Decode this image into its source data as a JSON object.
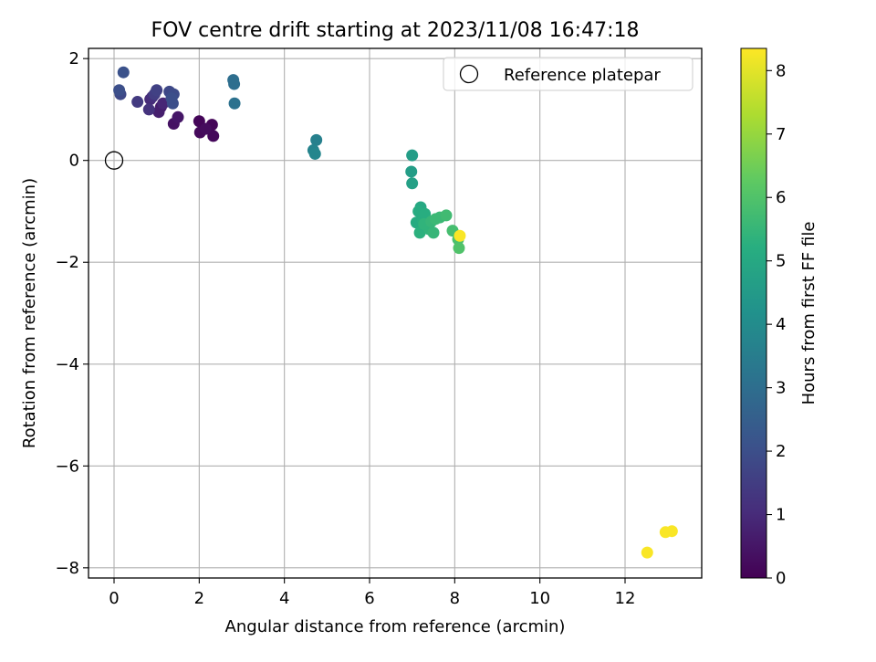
{
  "chart_data": {
    "type": "scatter",
    "title": "FOV centre drift starting at 2023/11/08 16:47:18",
    "xlabel": "Angular distance from reference (arcmin)",
    "ylabel": "Rotation from reference (arcmin)",
    "xlim": [
      -0.6,
      13.8
    ],
    "ylim": [
      -8.2,
      2.2
    ],
    "xticks": [
      0,
      2,
      4,
      6,
      8,
      10,
      12
    ],
    "yticks": [
      -8,
      -6,
      -4,
      -2,
      0,
      2
    ],
    "xtick_labels": [
      "0",
      "2",
      "4",
      "6",
      "8",
      "10",
      "12"
    ],
    "ytick_labels": [
      "−8",
      "−6",
      "−4",
      "−2",
      "0",
      "2"
    ],
    "grid": true,
    "legend": {
      "placement": "top-right",
      "entries": [
        "Reference platepar"
      ]
    },
    "reference_point": {
      "name": "Reference platepar",
      "x": 0,
      "y": 0
    },
    "colormap": "viridis",
    "colorbar": {
      "label": "Hours from first FF file",
      "min": 0,
      "max": 8.35,
      "ticks": [
        0,
        1,
        2,
        3,
        4,
        5,
        6,
        7,
        8
      ],
      "tick_labels": [
        "0",
        "1",
        "2",
        "3",
        "4",
        "5",
        "6",
        "7",
        "8"
      ]
    },
    "points": [
      {
        "x": 2.0,
        "y": 0.77,
        "c": 0.1
      },
      {
        "x": 2.3,
        "y": 0.7,
        "c": 0.1
      },
      {
        "x": 2.33,
        "y": 0.48,
        "c": 0.15
      },
      {
        "x": 2.02,
        "y": 0.55,
        "c": 0.2
      },
      {
        "x": 2.15,
        "y": 0.62,
        "c": 0.25
      },
      {
        "x": 1.4,
        "y": 0.72,
        "c": 0.4
      },
      {
        "x": 1.5,
        "y": 0.85,
        "c": 0.5
      },
      {
        "x": 1.1,
        "y": 1.05,
        "c": 0.6
      },
      {
        "x": 1.05,
        "y": 0.95,
        "c": 0.7
      },
      {
        "x": 1.15,
        "y": 1.12,
        "c": 0.9
      },
      {
        "x": 0.85,
        "y": 1.2,
        "c": 1.0
      },
      {
        "x": 0.9,
        "y": 1.25,
        "c": 1.1
      },
      {
        "x": 0.82,
        "y": 1.0,
        "c": 1.2
      },
      {
        "x": 0.55,
        "y": 1.15,
        "c": 1.4
      },
      {
        "x": 0.95,
        "y": 1.3,
        "c": 1.5
      },
      {
        "x": 1.0,
        "y": 1.38,
        "c": 1.6
      },
      {
        "x": 1.3,
        "y": 1.35,
        "c": 1.8
      },
      {
        "x": 1.4,
        "y": 1.3,
        "c": 1.9
      },
      {
        "x": 1.38,
        "y": 1.12,
        "c": 2.0
      },
      {
        "x": 1.35,
        "y": 1.22,
        "c": 2.0
      },
      {
        "x": 0.15,
        "y": 1.3,
        "c": 1.8
      },
      {
        "x": 0.12,
        "y": 1.38,
        "c": 2.0
      },
      {
        "x": 0.22,
        "y": 1.73,
        "c": 2.1
      },
      {
        "x": 2.8,
        "y": 1.58,
        "c": 3.0
      },
      {
        "x": 2.82,
        "y": 1.5,
        "c": 3.0
      },
      {
        "x": 2.83,
        "y": 1.12,
        "c": 3.1
      },
      {
        "x": 4.75,
        "y": 0.4,
        "c": 3.6
      },
      {
        "x": 4.68,
        "y": 0.2,
        "c": 3.7
      },
      {
        "x": 4.72,
        "y": 0.13,
        "c": 3.8
      },
      {
        "x": 7.0,
        "y": 0.1,
        "c": 4.6
      },
      {
        "x": 6.98,
        "y": -0.22,
        "c": 4.6
      },
      {
        "x": 7.0,
        "y": -0.45,
        "c": 4.7
      },
      {
        "x": 7.2,
        "y": -0.92,
        "c": 5.0
      },
      {
        "x": 7.15,
        "y": -1.0,
        "c": 5.1
      },
      {
        "x": 7.1,
        "y": -1.22,
        "c": 5.1
      },
      {
        "x": 7.25,
        "y": -1.18,
        "c": 5.2
      },
      {
        "x": 7.3,
        "y": -1.05,
        "c": 5.2
      },
      {
        "x": 7.18,
        "y": -1.42,
        "c": 5.3
      },
      {
        "x": 7.35,
        "y": -1.3,
        "c": 5.3
      },
      {
        "x": 7.4,
        "y": -1.35,
        "c": 5.4
      },
      {
        "x": 7.28,
        "y": -1.25,
        "c": 5.4
      },
      {
        "x": 7.5,
        "y": -1.42,
        "c": 5.5
      },
      {
        "x": 7.45,
        "y": -1.2,
        "c": 5.5
      },
      {
        "x": 7.55,
        "y": -1.15,
        "c": 5.6
      },
      {
        "x": 7.65,
        "y": -1.12,
        "c": 5.6
      },
      {
        "x": 7.8,
        "y": -1.08,
        "c": 5.7
      },
      {
        "x": 7.95,
        "y": -1.38,
        "c": 5.8
      },
      {
        "x": 8.08,
        "y": -1.55,
        "c": 5.9
      },
      {
        "x": 8.1,
        "y": -1.72,
        "c": 6.0
      },
      {
        "x": 8.12,
        "y": -1.48,
        "c": 8.3
      },
      {
        "x": 12.52,
        "y": -7.7,
        "c": 8.3
      },
      {
        "x": 12.95,
        "y": -7.3,
        "c": 8.3
      },
      {
        "x": 13.1,
        "y": -7.28,
        "c": 8.3
      }
    ]
  }
}
